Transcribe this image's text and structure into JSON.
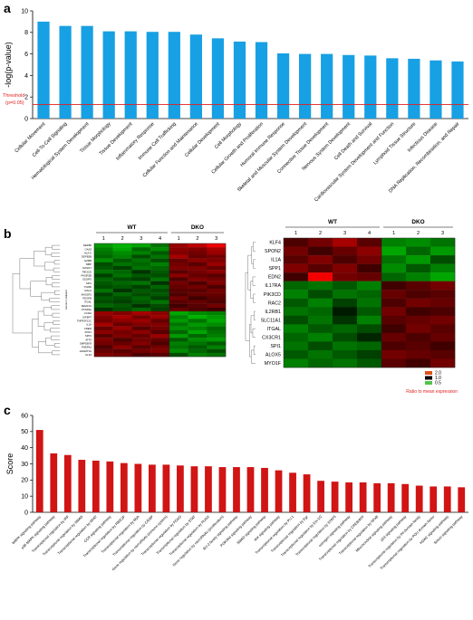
{
  "panels": {
    "a": "a",
    "b": "b",
    "c": "c"
  },
  "colors": {
    "bar_a": "#17a0e3",
    "bar_c": "#d11414",
    "threshold": "#e01f1f",
    "heat_red": "#ff0000",
    "heat_black": "#000000",
    "heat_green": "#00ff00"
  },
  "chart_data": [
    {
      "type": "bar",
      "ylabel": "-log(p-value)",
      "ylim": [
        0,
        10
      ],
      "yticks": [
        0,
        2,
        4,
        6,
        8,
        10
      ],
      "grid": false,
      "threshold": {
        "value": 1.3,
        "label_line1": "Threshold",
        "label_line2": "(p=0.05)"
      },
      "categories": [
        "Cellular Movement",
        "Cell-To-Cell Signaling",
        "Hematological System Development",
        "Tissue Morphology",
        "Tissue Development",
        "Inflammatory Response",
        "Immune Cell Trafficking",
        "Cellular Function and Maintenance",
        "Cellular Development",
        "Cell Morphology",
        "Cellular Growth and Proliferation",
        "Humoral Immune Response",
        "Skeletal and Muscular System Development",
        "Connective Tissue Development",
        "Nervous System Development",
        "Cell Death and Survival",
        "Cardiovascular System Development and Function",
        "Lymphoid Tissue Structure",
        "Infectious Disease",
        "DNA Replication, Recombination, and Repair"
      ],
      "values": [
        9.0,
        8.6,
        8.6,
        8.1,
        8.1,
        8.05,
        8.05,
        7.8,
        7.45,
        7.15,
        7.1,
        6.05,
        6.0,
        6.0,
        5.9,
        5.85,
        5.6,
        5.55,
        5.4,
        5.3
      ]
    },
    {
      "type": "heatmap",
      "panel": "b-left",
      "groups": [
        {
          "label": "WT",
          "lanes": [
            "1",
            "2",
            "3",
            "4"
          ]
        },
        {
          "label": "DKO",
          "lanes": [
            "1",
            "2",
            "3"
          ]
        }
      ],
      "side_label": "Genes in dataset",
      "genes": [
        "DEFB6",
        "OAS3",
        "HLA-A",
        "DEFB2B",
        "GZMB",
        "MBP",
        "RASGT",
        "PIK3CD",
        "PIK3R2B",
        "S100P2",
        "SPI1",
        "TGFBI",
        "RAC2",
        "MASSP1",
        "PDGFB",
        "ITGAL",
        "SEMA7A",
        "PCSK9A",
        "CCDH",
        "IGFBP7",
        "TNFRSF12C",
        "IL1A",
        "CREM",
        "RYR1",
        "SPP1",
        "ATF3",
        "SMPDB78",
        "PHEPA1",
        "ADAMTS1",
        "KLF4"
      ],
      "values": [
        [
          -1.2,
          -1.4,
          -1.3,
          -0.9,
          1.2,
          1.5,
          1.9
        ],
        [
          -1.0,
          -1.3,
          -0.8,
          -1.1,
          1.1,
          1.0,
          1.3
        ],
        [
          -0.9,
          -1.1,
          -1.0,
          -0.7,
          1.0,
          0.9,
          1.2
        ],
        [
          -0.8,
          -1.0,
          -0.6,
          -0.9,
          1.3,
          0.8,
          0.9
        ],
        [
          -1.1,
          -0.7,
          -0.9,
          -0.6,
          0.8,
          1.1,
          1.0
        ],
        [
          -0.6,
          -0.9,
          -0.8,
          -1.0,
          0.9,
          0.7,
          1.2
        ],
        [
          -0.7,
          -0.5,
          -0.9,
          -0.8,
          1.0,
          1.0,
          0.8
        ],
        [
          -0.9,
          -0.8,
          -0.4,
          -0.7,
          0.7,
          0.9,
          1.1
        ],
        [
          -0.5,
          -0.9,
          -0.7,
          -0.6,
          1.1,
          0.8,
          0.7
        ],
        [
          -0.8,
          -0.6,
          -0.5,
          -0.9,
          0.6,
          1.0,
          0.9
        ],
        [
          -0.7,
          -0.8,
          -0.9,
          -0.4,
          0.9,
          0.6,
          1.0
        ],
        [
          -0.6,
          -0.7,
          -0.5,
          -0.8,
          0.8,
          0.9,
          0.6
        ],
        [
          -0.9,
          -0.4,
          -0.7,
          -0.6,
          0.7,
          0.7,
          0.9
        ],
        [
          -0.5,
          -0.8,
          -0.6,
          -0.7,
          0.6,
          0.8,
          0.8
        ],
        [
          -0.7,
          -0.6,
          -0.8,
          -0.5,
          0.9,
          0.5,
          0.7
        ],
        [
          -0.6,
          -0.5,
          -0.7,
          -0.9,
          0.7,
          0.8,
          0.6
        ],
        [
          -0.8,
          -0.7,
          -0.4,
          -0.6,
          0.5,
          0.7,
          0.9
        ],
        [
          -0.4,
          -0.6,
          -0.8,
          -0.5,
          0.8,
          0.6,
          0.5
        ],
        [
          1.2,
          1.0,
          1.3,
          1.1,
          -1.3,
          -1.1,
          -1.0
        ],
        [
          1.0,
          1.3,
          0.9,
          1.2,
          -1.0,
          -1.4,
          -1.2
        ],
        [
          0.9,
          1.1,
          1.2,
          0.8,
          -1.2,
          -0.9,
          -1.3
        ],
        [
          1.3,
          0.8,
          1.0,
          1.0,
          -0.9,
          -1.2,
          -1.1
        ],
        [
          0.8,
          1.2,
          0.7,
          0.9,
          -1.1,
          -1.0,
          -0.8
        ],
        [
          1.1,
          0.9,
          1.1,
          0.7,
          -0.8,
          -1.3,
          -0.9
        ],
        [
          0.7,
          1.0,
          0.8,
          1.2,
          -1.2,
          -0.8,
          -1.0
        ],
        [
          1.0,
          0.6,
          0.9,
          0.8,
          -0.7,
          -1.1,
          -1.2
        ],
        [
          0.9,
          0.8,
          1.0,
          0.6,
          -1.0,
          -0.9,
          -0.7
        ],
        [
          0.6,
          1.1,
          0.7,
          0.9,
          -0.9,
          -0.7,
          -1.0
        ],
        [
          0.8,
          0.7,
          0.9,
          1.0,
          -1.1,
          -0.8,
          -0.6
        ],
        [
          1.0,
          0.9,
          0.6,
          0.7,
          -0.6,
          -1.0,
          -0.9
        ]
      ]
    },
    {
      "type": "heatmap",
      "panel": "b-right",
      "groups": [
        {
          "label": "WT",
          "lanes": [
            "1",
            "2",
            "3",
            "4"
          ]
        },
        {
          "label": "DKO",
          "lanes": [
            "1",
            "2",
            "3"
          ]
        }
      ],
      "genes": [
        "KLF4",
        "SPON2",
        "IL1A",
        "SPP1",
        "EDN2",
        "IL17RA",
        "PIK3CD",
        "RAC2",
        "IL2RB1",
        "SLC11A1",
        "ITGAL",
        "CX3CR1",
        "SPI1",
        "ALOX5",
        "MYO1F"
      ],
      "values": [
        [
          0.6,
          0.9,
          1.3,
          0.7,
          -1.0,
          -1.1,
          -0.9
        ],
        [
          0.9,
          0.5,
          0.8,
          1.1,
          -1.3,
          -0.8,
          -1.2
        ],
        [
          0.7,
          1.0,
          0.6,
          0.9,
          -0.9,
          -1.2,
          -0.6
        ],
        [
          1.0,
          0.7,
          1.0,
          0.5,
          -1.1,
          -0.7,
          -1.0
        ],
        [
          0.5,
          1.9,
          0.9,
          0.8,
          -0.8,
          -1.0,
          -1.3
        ],
        [
          -0.8,
          -0.9,
          -0.7,
          -1.0,
          0.5,
          0.7,
          0.9
        ],
        [
          -1.0,
          -0.6,
          -0.9,
          -0.8,
          0.8,
          0.6,
          0.7
        ],
        [
          -0.7,
          -1.0,
          -0.5,
          -0.9,
          0.6,
          0.9,
          0.8
        ],
        [
          -0.9,
          -0.8,
          -0.2,
          -0.7,
          0.9,
          0.5,
          0.6
        ],
        [
          -0.6,
          -0.9,
          -0.4,
          -1.0,
          0.7,
          0.8,
          0.9
        ],
        [
          -1.0,
          -0.7,
          -0.8,
          -0.6,
          0.5,
          0.9,
          0.7
        ],
        [
          -0.8,
          -1.0,
          -0.6,
          -0.3,
          0.8,
          0.6,
          0.8
        ],
        [
          -0.9,
          -0.6,
          -0.9,
          -0.8,
          0.6,
          0.7,
          0.5
        ],
        [
          -0.7,
          -0.9,
          -0.7,
          -0.5,
          0.9,
          0.8,
          0.7
        ],
        [
          -1.0,
          -0.8,
          -0.9,
          -0.7,
          0.7,
          0.5,
          0.9
        ]
      ]
    },
    {
      "type": "bar",
      "ylabel": "Score",
      "ylim": [
        0,
        60
      ],
      "yticks": [
        0,
        10,
        20,
        30,
        40,
        50,
        60
      ],
      "grid": false,
      "categories": [
        "MAPK signaling pathway",
        "p38 MAPK signaling pathway",
        "Transcriptional regulation by IRF",
        "Transcriptional regulation by SMAD",
        "Transcriptional regulation by NFAT",
        "CCR signaling pathway",
        "Transcriptional regulation by RB/E2F",
        "Transcriptional regulation by Myb",
        "Transcriptional regulation by C/EBP",
        "Gene regulation by microRNAs (immune system)",
        "Transcriptional regulation by FOXO",
        "Transcriptional regulation by STAT",
        "Transcriptional regulation by RUNX",
        "Gene regulation by microRNAs (proliferation)",
        "Bcl-2 family signaling pathway",
        "PI3K/Akt signaling pathway",
        "SMAD signaling pathway",
        "IKK signaling pathway",
        "Transcriptional regulation by PU.1",
        "Transcriptional regulation by Egr",
        "Transcriptional regulation by Ets-1/2",
        "Transcriptional regulation by STAT5",
        "estrogen signaling pathway",
        "Transcriptional regulation by CREB/ATF",
        "Transcriptional regulation by NFkB",
        "Mitochondrial signaling pathway",
        "p53 signaling pathway",
        "Transcriptional regulation by Pit-domain family",
        "Transcriptional regulation by POU domain factor",
        "HDAC signaling pathway",
        "Sirtuin signaling pathway"
      ],
      "values": [
        51,
        36.5,
        35.5,
        32.5,
        32,
        31.5,
        30.5,
        30,
        29.5,
        29.5,
        29,
        28.5,
        28.5,
        28,
        28,
        28,
        27.5,
        26,
        24.5,
        23.5,
        19.5,
        19,
        18.5,
        18.5,
        18,
        18,
        17.5,
        16.5,
        16,
        16,
        15.5
      ]
    }
  ],
  "heat_legend": {
    "entries": [
      {
        "label": "2.0",
        "color": "#e0521c"
      },
      {
        "label": "1.0",
        "color": "#000000"
      },
      {
        "label": "0.5",
        "color": "#53c44b"
      }
    ],
    "caption": "Ratio to mean expression"
  }
}
